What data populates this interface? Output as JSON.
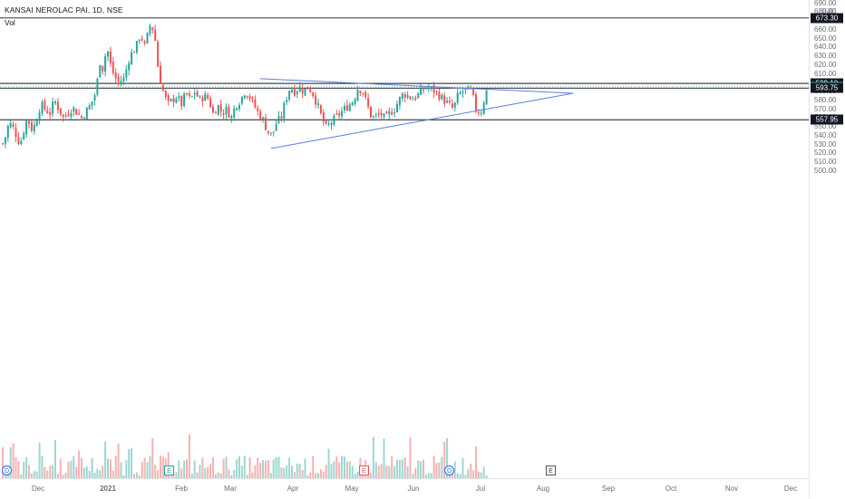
{
  "header": {
    "symbol": "KANSAI NEROLAC PAI",
    "interval": "1D",
    "exchange": "NSE",
    "separator": ", ",
    "volume_label": "Vol"
  },
  "price_axis": {
    "currency": "INR",
    "ticks": [
      "690.00",
      "680.00",
      "670.00",
      "660.00",
      "650.00",
      "640.00",
      "630.00",
      "620.00",
      "610.00",
      "600.00",
      "590.00",
      "580.00",
      "570.00",
      "560.00",
      "550.00",
      "540.00",
      "530.00",
      "520.00",
      "510.00",
      "500.00"
    ]
  },
  "time_axis": {
    "labels": [
      "Dec",
      "2021",
      "Feb",
      "Mar",
      "Apr",
      "May",
      "Jun",
      "Jul",
      "Aug",
      "Sep",
      "Oct",
      "Nov",
      "Dec"
    ]
  },
  "levels": [
    {
      "price": "673.30",
      "color": "#131722"
    },
    {
      "price": "599.10",
      "color": "#131722"
    },
    {
      "price": "595.15",
      "color": "#26a69a"
    },
    {
      "price": "593.75",
      "color": "#131722"
    },
    {
      "price": "557.95",
      "color": "#131722"
    }
  ],
  "events": [
    {
      "label": "D",
      "kind": "dividend"
    },
    {
      "label": "E",
      "kind": "earnings-green"
    },
    {
      "label": "E",
      "kind": "earnings-red"
    },
    {
      "label": "D",
      "kind": "dividend"
    },
    {
      "label": "E",
      "kind": "earnings-upcoming"
    }
  ],
  "colors": {
    "up": "#26a69a",
    "down": "#ef5350",
    "trendline": "#5b7ee0",
    "level_line": "#131722"
  },
  "chart_data": {
    "type": "candlestick",
    "symbol": "KANSAI NEROLAC PAI",
    "interval": "1D",
    "y_range": [
      495,
      693
    ],
    "trendlines": [
      {
        "from": {
          "date": "2021-03-15",
          "price": 604.5
        },
        "to": {
          "date": "2021-08-12",
          "price": 588.0
        }
      },
      {
        "from": {
          "date": "2021-03-15",
          "price": 525.5
        },
        "to": {
          "date": "2021-08-12",
          "price": 588.0
        }
      }
    ],
    "horizontal_levels": [
      673.3,
      599.1,
      595.15,
      593.75,
      557.95
    ],
    "last_price": 595.15
  }
}
